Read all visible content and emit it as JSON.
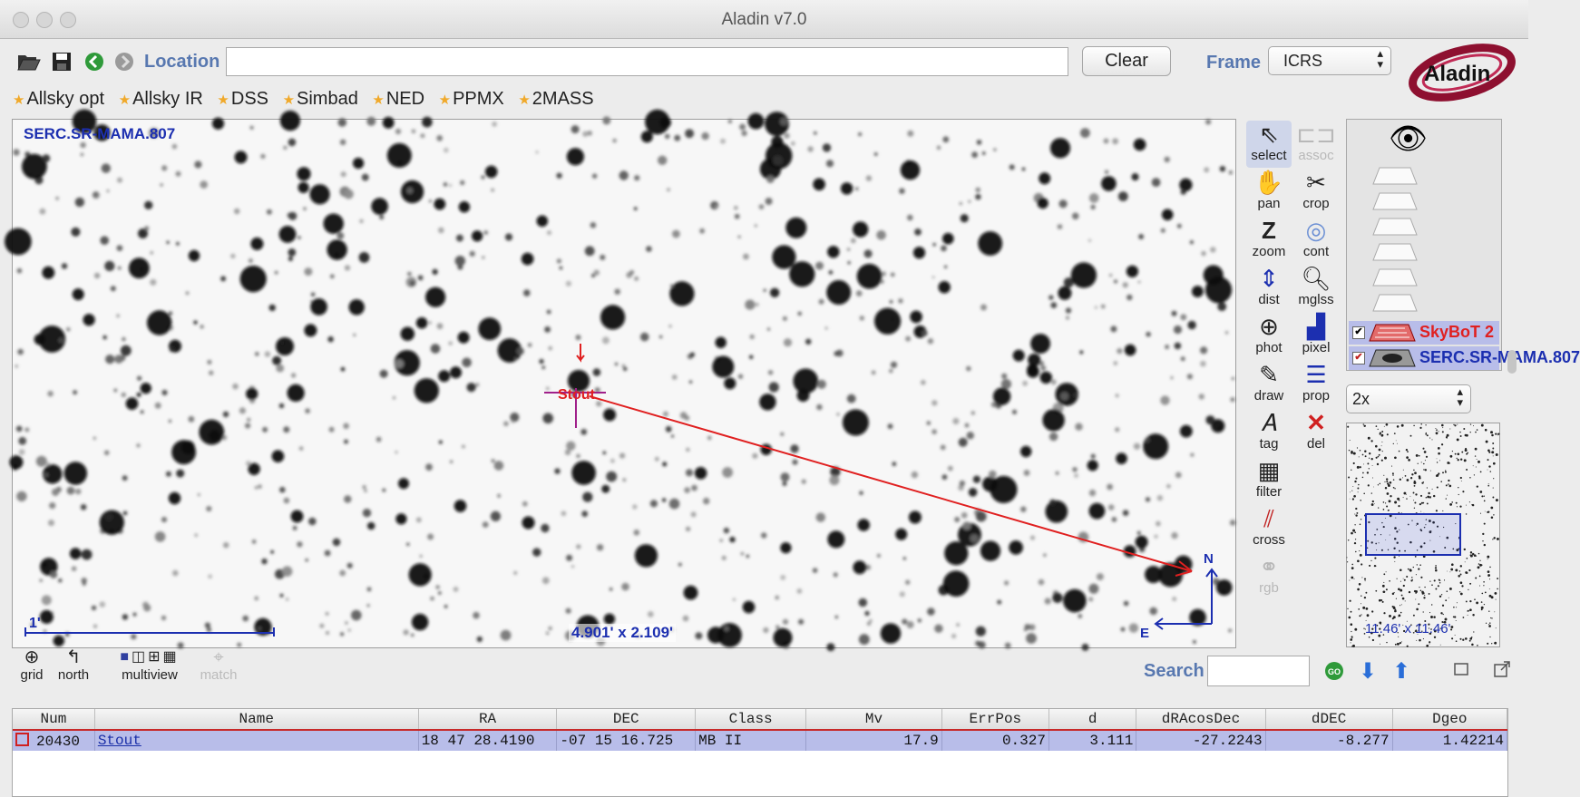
{
  "app": {
    "title": "Aladin v7.0"
  },
  "toolbar": {
    "location_label": "Location",
    "location_value": "",
    "clear_label": "Clear",
    "frame_label": "Frame",
    "frame_value": "ICRS",
    "logo_text": "Aladin"
  },
  "bookmarks": [
    "Allsky opt",
    "Allsky IR",
    "DSS",
    "Simbad",
    "NED",
    "PPMX",
    "2MASS"
  ],
  "view": {
    "survey_label": "SERC.SR-MAMA.807",
    "fov_label": "4.901' x 2.109'",
    "scale_label": "1'",
    "target_label": "Stout",
    "north_label": "N",
    "east_label": "E"
  },
  "tools": [
    {
      "label": "select",
      "icon": "cursor-arrow-icon",
      "enabled": true
    },
    {
      "label": "assoc",
      "icon": "assoc-icon",
      "enabled": false
    },
    {
      "label": "pan",
      "icon": "hand-icon",
      "enabled": true
    },
    {
      "label": "crop",
      "icon": "scissors-icon",
      "enabled": true
    },
    {
      "label": "zoom",
      "icon": "zoom-z-icon",
      "enabled": true
    },
    {
      "label": "cont",
      "icon": "contour-icon",
      "enabled": true
    },
    {
      "label": "dist",
      "icon": "distance-icon",
      "enabled": true
    },
    {
      "label": "mglss",
      "icon": "magnifier-icon",
      "enabled": true
    },
    {
      "label": "phot",
      "icon": "photometry-icon",
      "enabled": true
    },
    {
      "label": "pixel",
      "icon": "pixel-histogram-icon",
      "enabled": true
    },
    {
      "label": "draw",
      "icon": "pencil-icon",
      "enabled": true
    },
    {
      "label": "prop",
      "icon": "properties-icon",
      "enabled": true
    },
    {
      "label": "tag",
      "icon": "tag-icon",
      "enabled": true
    },
    {
      "label": "del",
      "icon": "delete-x-icon",
      "enabled": true
    },
    {
      "label": "filter",
      "icon": "filter-icon",
      "enabled": true
    },
    {
      "label": "cross",
      "icon": "crossmatch-icon",
      "enabled": true
    },
    {
      "label": "rgb",
      "icon": "rgb-icon",
      "enabled": false
    }
  ],
  "layers": [
    {
      "name": "SkyBoT 2",
      "color": "#e02020",
      "checked": true
    },
    {
      "name": "SERC.SR-MAMA.807",
      "color": "#1c2fb0",
      "checked": true
    }
  ],
  "zoom": {
    "value": "2x"
  },
  "panner": {
    "fov_label": "11.46' x 11.46'"
  },
  "bottom": {
    "grid_label": "grid",
    "north_label": "north",
    "multiview_label": "multiview",
    "match_label": "match",
    "search_label": "Search",
    "search_value": ""
  },
  "measurements": {
    "columns": [
      "Num",
      "Name",
      "RA",
      "DEC",
      "Class",
      "Mv",
      "ErrPos",
      "d",
      "dRAcosDec",
      "dDEC",
      "Dgeo"
    ],
    "rows": [
      [
        "20430",
        "Stout",
        "18 47 28.4190",
        "-07 15 16.725",
        "MB II",
        "17.9",
        "0.327",
        "3.111",
        "-27.2243",
        "-8.277",
        "1.42214"
      ]
    ]
  },
  "colors": {
    "accent": "#5878b0",
    "overlay_blue": "#1c2fb0",
    "selection": "#b8bde9",
    "marker_red": "#e02020"
  }
}
